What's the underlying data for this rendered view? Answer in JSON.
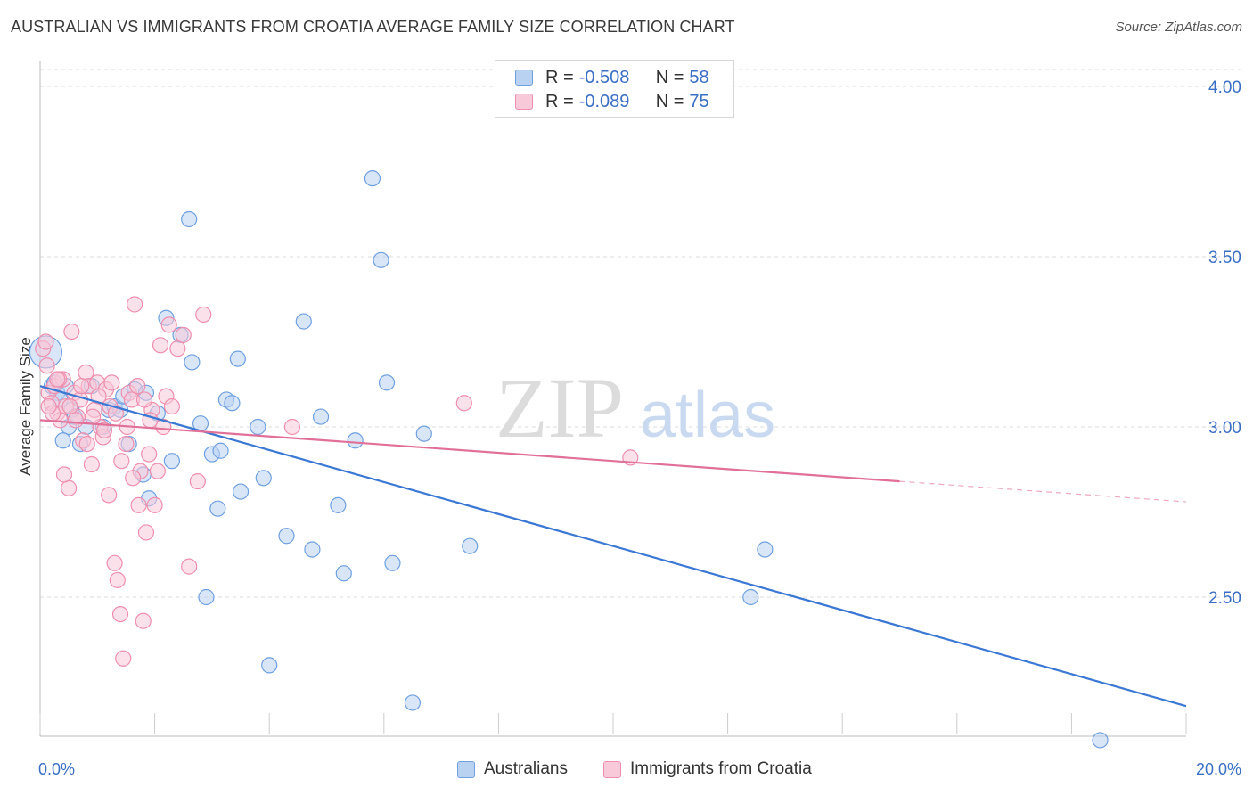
{
  "title": "AUSTRALIAN VS IMMIGRANTS FROM CROATIA AVERAGE FAMILY SIZE CORRELATION CHART",
  "source": "Source: ZipAtlas.com",
  "watermark": {
    "zip": "ZIP",
    "atlas": "atlas"
  },
  "legend": {
    "r_label": "R =",
    "n_label": "N =",
    "rows": [
      {
        "r": "-0.508",
        "n": "58",
        "color": "#6fa0e0",
        "fill": "#b9d2f2"
      },
      {
        "r": "-0.089",
        "n": "75",
        "color": "#ee8fae",
        "fill": "#f8c9d8"
      }
    ]
  },
  "chart_data": {
    "type": "scatter",
    "title": "AUSTRALIAN VS IMMIGRANTS FROM CROATIA AVERAGE FAMILY SIZE CORRELATION CHART",
    "xlabel": "",
    "ylabel": "Average Family Size",
    "x_tick_labels": [
      "0.0%",
      "20.0%"
    ],
    "y_tick_labels": [
      "4.00",
      "3.50",
      "3.00",
      "2.50"
    ],
    "y_ticks": [
      4.0,
      3.5,
      3.0,
      2.5
    ],
    "xlim": [
      0,
      20
    ],
    "ylim": [
      2.05,
      4.08
    ],
    "grid": true,
    "legend_position": "top-center",
    "series": [
      {
        "name": "Australians",
        "color": "#3a78d4",
        "fill": "#b9d2f2",
        "stroke": "#6fa0e0",
        "trend": {
          "x0": 0.0,
          "y0": 3.12,
          "x1": 20.0,
          "y1": 2.18
        },
        "points": [
          [
            0.1,
            3.22
          ],
          [
            0.2,
            3.12
          ],
          [
            0.3,
            3.1
          ],
          [
            0.35,
            3.08
          ],
          [
            0.45,
            3.12
          ],
          [
            0.55,
            3.05
          ],
          [
            0.5,
            3.0
          ],
          [
            0.7,
            2.95
          ],
          [
            0.8,
            3.0
          ],
          [
            0.9,
            3.12
          ],
          [
            1.2,
            3.05
          ],
          [
            1.3,
            3.06
          ],
          [
            1.4,
            3.05
          ],
          [
            1.45,
            3.09
          ],
          [
            1.55,
            2.95
          ],
          [
            1.65,
            3.11
          ],
          [
            1.85,
            3.1
          ],
          [
            2.05,
            3.04
          ],
          [
            2.2,
            3.32
          ],
          [
            2.3,
            2.9
          ],
          [
            2.45,
            3.27
          ],
          [
            2.6,
            3.61
          ],
          [
            2.65,
            3.19
          ],
          [
            2.8,
            3.01
          ],
          [
            2.9,
            2.5
          ],
          [
            3.0,
            2.92
          ],
          [
            3.1,
            2.76
          ],
          [
            3.15,
            2.93
          ],
          [
            3.25,
            3.08
          ],
          [
            3.35,
            3.07
          ],
          [
            3.45,
            3.2
          ],
          [
            3.5,
            2.81
          ],
          [
            3.8,
            3.0
          ],
          [
            3.9,
            2.85
          ],
          [
            4.0,
            2.3
          ],
          [
            4.3,
            2.68
          ],
          [
            4.6,
            3.31
          ],
          [
            4.75,
            2.64
          ],
          [
            4.9,
            3.03
          ],
          [
            5.2,
            2.77
          ],
          [
            5.3,
            2.57
          ],
          [
            5.5,
            2.96
          ],
          [
            5.8,
            3.73
          ],
          [
            5.95,
            3.49
          ],
          [
            6.05,
            3.13
          ],
          [
            6.15,
            2.6
          ],
          [
            6.5,
            2.19
          ],
          [
            6.7,
            2.98
          ],
          [
            7.5,
            2.65
          ],
          [
            12.4,
            2.5
          ],
          [
            12.65,
            2.64
          ],
          [
            18.5,
            2.08
          ],
          [
            1.1,
            3.0
          ],
          [
            1.8,
            2.86
          ],
          [
            1.9,
            2.79
          ],
          [
            0.6,
            3.03
          ],
          [
            0.25,
            3.13
          ],
          [
            0.4,
            2.96
          ]
        ]
      },
      {
        "name": "Immigrants from Croatia",
        "color": "#e07098",
        "fill": "#f8c9d8",
        "stroke": "#ee8fae",
        "trend": {
          "x0": 0.0,
          "y0": 3.02,
          "x1": 15.0,
          "y1": 2.84
        },
        "trend_dashed": {
          "x0": 15.0,
          "y0": 2.84,
          "x1": 20.0,
          "y1": 2.78
        },
        "points": [
          [
            0.05,
            3.23
          ],
          [
            0.1,
            3.25
          ],
          [
            0.15,
            3.1
          ],
          [
            0.2,
            3.07
          ],
          [
            0.25,
            3.12
          ],
          [
            0.3,
            3.04
          ],
          [
            0.35,
            3.02
          ],
          [
            0.4,
            3.14
          ],
          [
            0.45,
            3.06
          ],
          [
            0.5,
            2.82
          ],
          [
            0.55,
            3.28
          ],
          [
            0.6,
            3.1
          ],
          [
            0.65,
            3.03
          ],
          [
            0.7,
            3.08
          ],
          [
            0.75,
            2.96
          ],
          [
            0.8,
            3.16
          ],
          [
            0.85,
            3.12
          ],
          [
            0.9,
            2.89
          ],
          [
            0.95,
            3.05
          ],
          [
            1.0,
            3.13
          ],
          [
            1.05,
            3.0
          ],
          [
            1.1,
            2.97
          ],
          [
            1.15,
            3.11
          ],
          [
            1.2,
            2.8
          ],
          [
            1.25,
            3.13
          ],
          [
            1.3,
            2.6
          ],
          [
            1.35,
            2.55
          ],
          [
            1.4,
            2.45
          ],
          [
            1.45,
            2.32
          ],
          [
            1.5,
            2.95
          ],
          [
            1.55,
            3.1
          ],
          [
            1.6,
            3.08
          ],
          [
            1.65,
            3.36
          ],
          [
            1.7,
            3.12
          ],
          [
            1.75,
            2.87
          ],
          [
            1.8,
            2.43
          ],
          [
            1.85,
            2.69
          ],
          [
            1.9,
            2.92
          ],
          [
            1.95,
            3.05
          ],
          [
            2.0,
            2.77
          ],
          [
            2.05,
            2.87
          ],
          [
            2.1,
            3.24
          ],
          [
            2.15,
            3.0
          ],
          [
            2.2,
            3.09
          ],
          [
            2.25,
            3.3
          ],
          [
            2.3,
            3.06
          ],
          [
            2.4,
            3.23
          ],
          [
            2.5,
            3.27
          ],
          [
            2.6,
            2.59
          ],
          [
            2.75,
            2.84
          ],
          [
            2.85,
            3.33
          ],
          [
            0.12,
            3.18
          ],
          [
            0.22,
            3.04
          ],
          [
            0.33,
            3.14
          ],
          [
            0.42,
            2.86
          ],
          [
            0.52,
            3.06
          ],
          [
            0.62,
            3.02
          ],
          [
            0.72,
            3.12
          ],
          [
            0.82,
            2.95
          ],
          [
            0.92,
            3.03
          ],
          [
            1.02,
            3.09
          ],
          [
            1.12,
            2.99
          ],
          [
            1.22,
            3.06
          ],
          [
            1.32,
            3.04
          ],
          [
            1.42,
            2.9
          ],
          [
            1.52,
            3.0
          ],
          [
            1.62,
            2.85
          ],
          [
            1.72,
            2.77
          ],
          [
            1.82,
            3.08
          ],
          [
            1.92,
            3.02
          ],
          [
            4.4,
            3.0
          ],
          [
            7.4,
            3.07
          ],
          [
            10.3,
            2.91
          ],
          [
            0.3,
            3.14
          ],
          [
            0.15,
            3.06
          ]
        ]
      }
    ]
  },
  "bottom_legend": [
    "Australians",
    "Immigrants from Croatia"
  ]
}
